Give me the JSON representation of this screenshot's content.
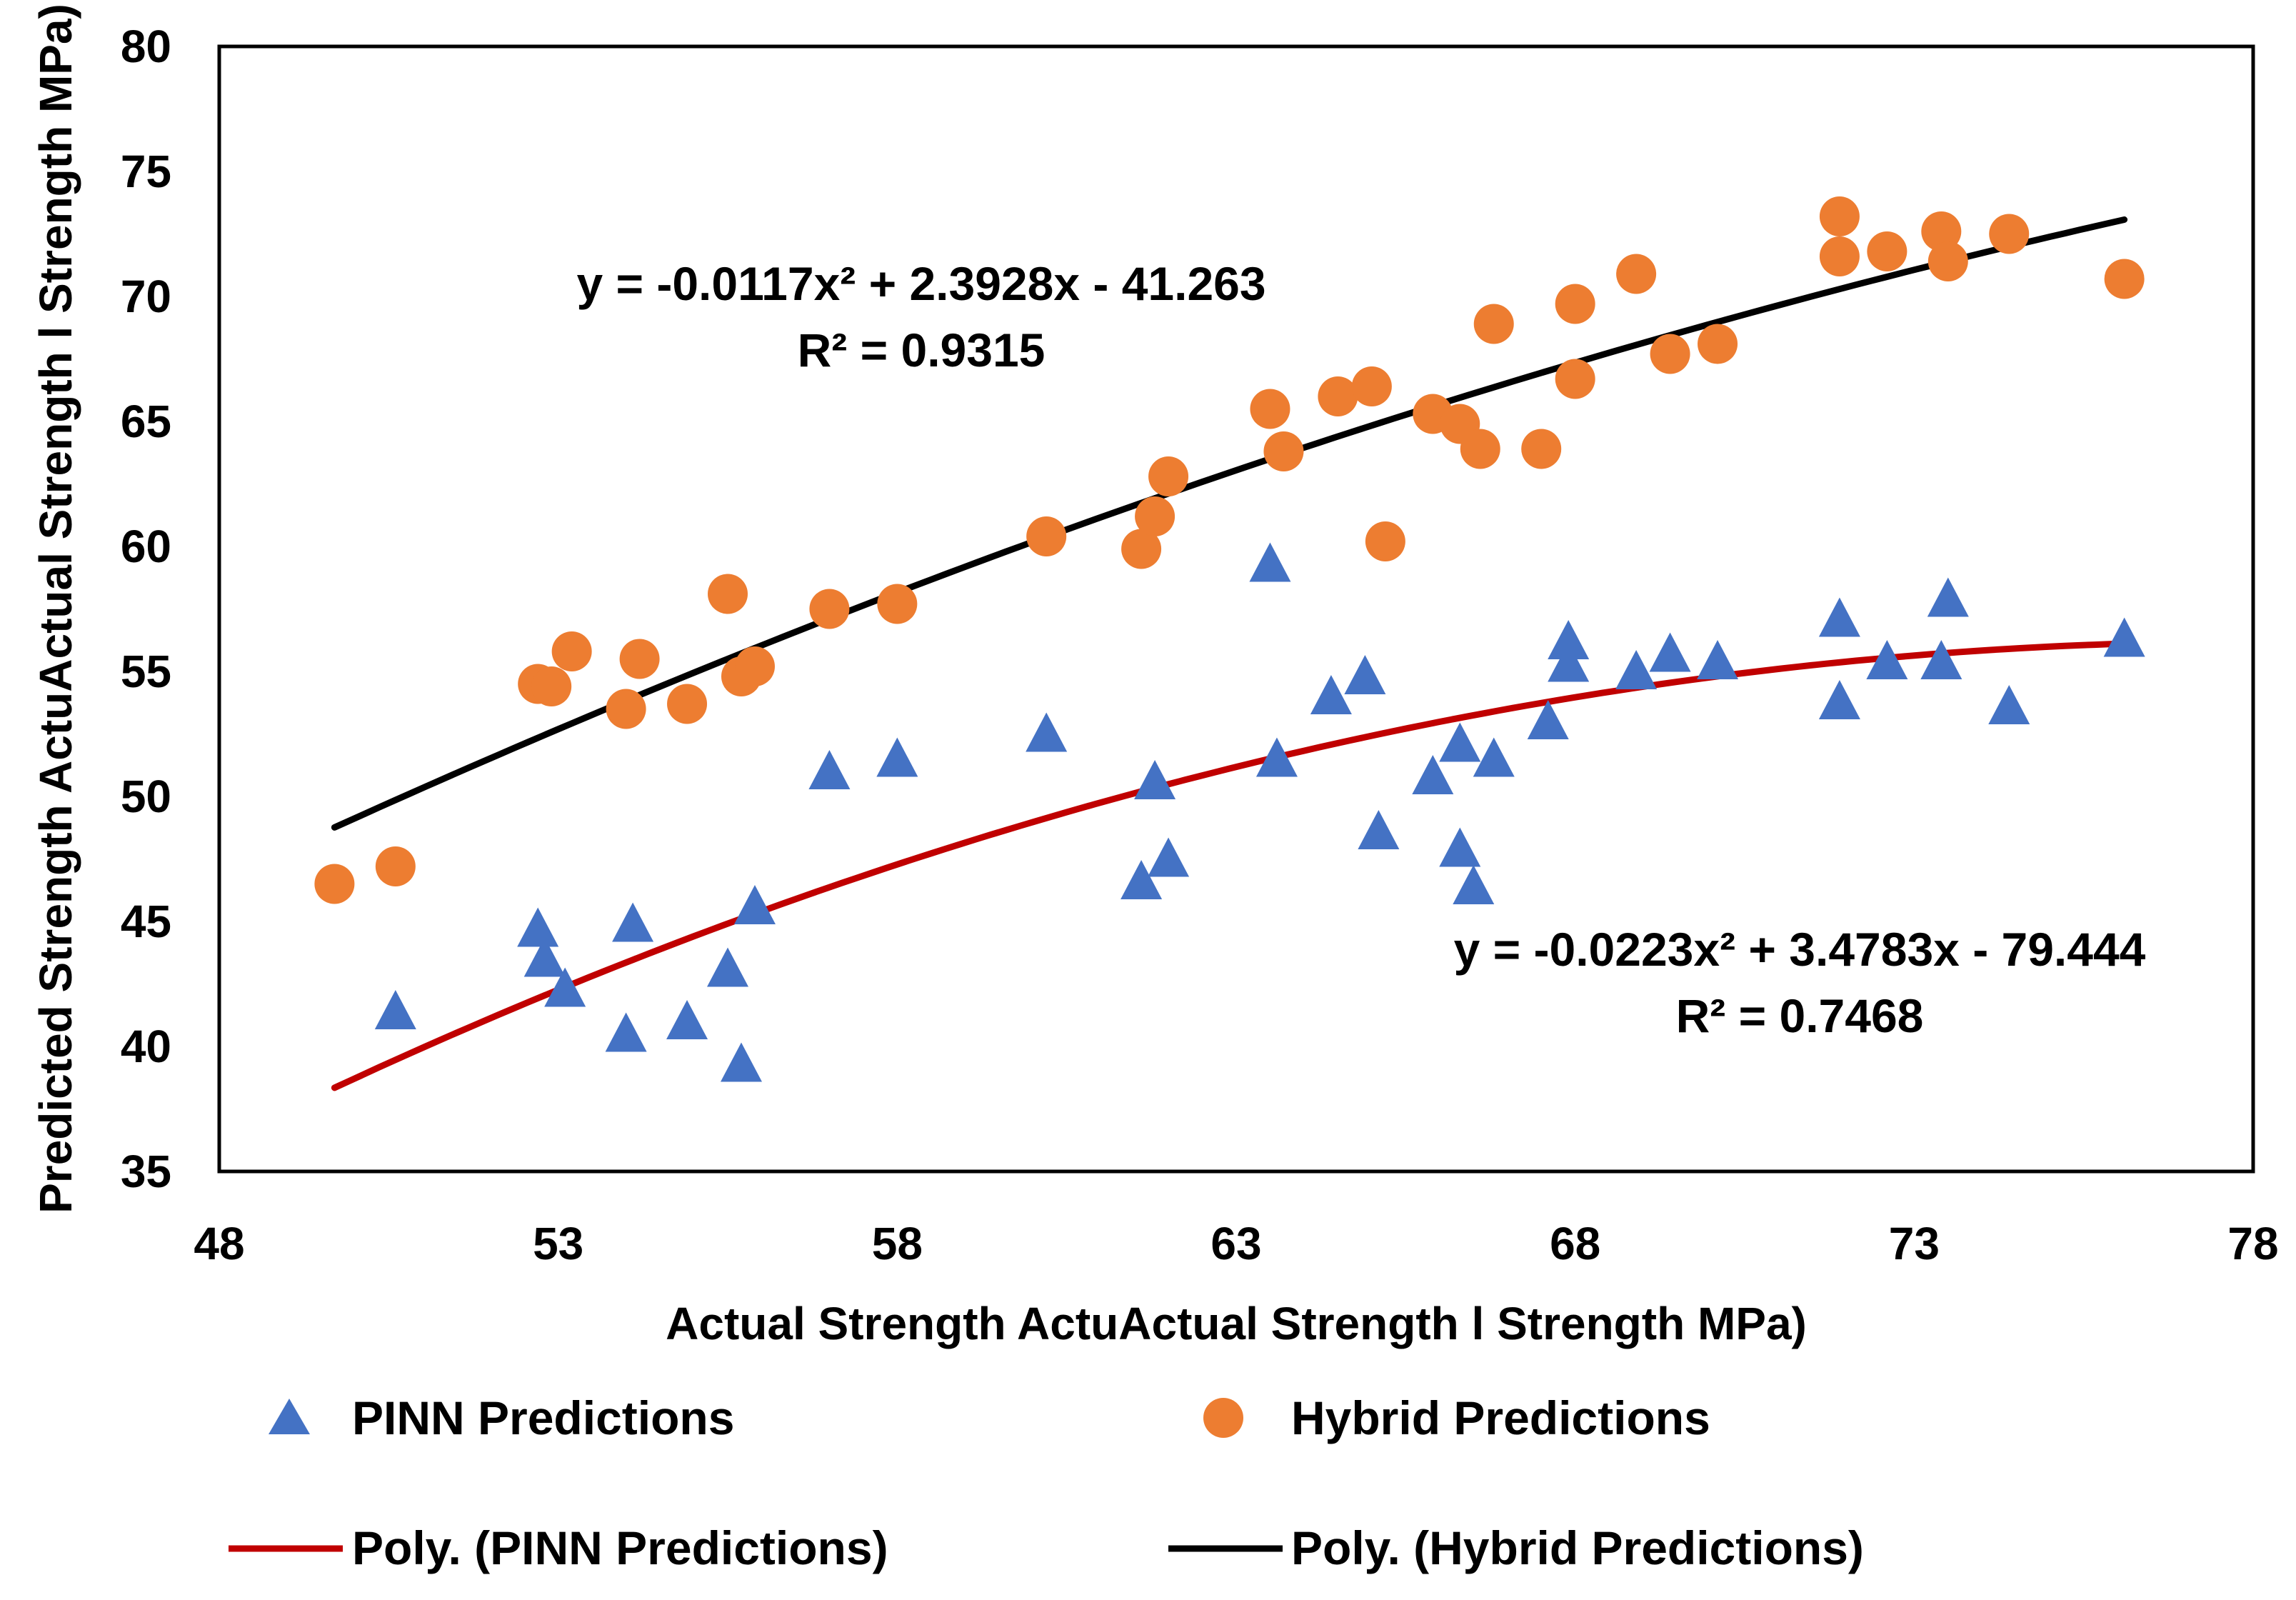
{
  "chart_data": {
    "type": "scatter",
    "title": "",
    "xlabel": "Actual Strength ActuActual Strength l Strength MPa)",
    "ylabel": "Predicted Strength ActuActual Strength l Strength MPa)",
    "xlim": [
      48,
      78
    ],
    "ylim": [
      35,
      80
    ],
    "x_ticks": [
      48,
      53,
      58,
      63,
      68,
      73,
      78
    ],
    "y_ticks": [
      35,
      40,
      45,
      50,
      55,
      60,
      65,
      70,
      75,
      80
    ],
    "grid": false,
    "legend_position": "bottom",
    "series": [
      {
        "name": "PINN Predictions",
        "marker": "triangle",
        "color": "#4472C4",
        "points": [
          [
            50.6,
            41.4
          ],
          [
            52.7,
            44.7
          ],
          [
            52.8,
            43.5
          ],
          [
            53.1,
            42.3
          ],
          [
            54.0,
            40.5
          ],
          [
            54.1,
            44.9
          ],
          [
            54.9,
            41.0
          ],
          [
            55.5,
            43.1
          ],
          [
            55.7,
            39.3
          ],
          [
            55.9,
            45.6
          ],
          [
            57.0,
            51.0
          ],
          [
            58.0,
            51.5
          ],
          [
            60.2,
            52.5
          ],
          [
            61.6,
            46.6
          ],
          [
            61.8,
            50.6
          ],
          [
            62.0,
            47.5
          ],
          [
            63.5,
            59.3
          ],
          [
            63.6,
            51.5
          ],
          [
            64.4,
            54.0
          ],
          [
            64.9,
            54.8
          ],
          [
            65.1,
            48.6
          ],
          [
            65.9,
            50.8
          ],
          [
            66.3,
            52.1
          ],
          [
            66.3,
            47.9
          ],
          [
            66.5,
            46.4
          ],
          [
            66.8,
            51.5
          ],
          [
            67.6,
            53.0
          ],
          [
            67.9,
            56.2
          ],
          [
            67.9,
            55.3
          ],
          [
            68.9,
            55.0
          ],
          [
            69.4,
            55.7
          ],
          [
            70.1,
            55.4
          ],
          [
            71.9,
            57.1
          ],
          [
            71.9,
            53.8
          ],
          [
            72.6,
            55.4
          ],
          [
            73.4,
            55.4
          ],
          [
            73.5,
            57.9
          ],
          [
            74.4,
            53.6
          ],
          [
            76.1,
            56.3
          ]
        ]
      },
      {
        "name": "Hybrid Predictions",
        "marker": "circle",
        "color": "#ED7D31",
        "points": [
          [
            49.7,
            46.5
          ],
          [
            50.6,
            47.2
          ],
          [
            52.7,
            54.5
          ],
          [
            52.9,
            54.4
          ],
          [
            53.2,
            55.8
          ],
          [
            54.0,
            53.5
          ],
          [
            54.2,
            55.5
          ],
          [
            54.9,
            53.7
          ],
          [
            55.5,
            58.1
          ],
          [
            55.7,
            54.8
          ],
          [
            55.9,
            55.2
          ],
          [
            57.0,
            57.5
          ],
          [
            58.0,
            57.7
          ],
          [
            60.2,
            60.4
          ],
          [
            61.6,
            59.9
          ],
          [
            61.8,
            61.2
          ],
          [
            62.0,
            62.8
          ],
          [
            63.5,
            65.5
          ],
          [
            63.7,
            63.8
          ],
          [
            64.5,
            66.0
          ],
          [
            65.0,
            66.4
          ],
          [
            65.2,
            60.2
          ],
          [
            65.9,
            65.3
          ],
          [
            66.3,
            64.9
          ],
          [
            66.6,
            63.9
          ],
          [
            66.8,
            68.9
          ],
          [
            67.5,
            63.9
          ],
          [
            68.0,
            66.7
          ],
          [
            68.0,
            69.7
          ],
          [
            68.9,
            70.9
          ],
          [
            69.4,
            67.7
          ],
          [
            70.1,
            68.1
          ],
          [
            71.9,
            73.2
          ],
          [
            71.9,
            71.6
          ],
          [
            72.6,
            71.8
          ],
          [
            73.4,
            72.6
          ],
          [
            73.5,
            71.4
          ],
          [
            74.4,
            72.5
          ],
          [
            76.1,
            70.7
          ]
        ]
      }
    ],
    "trendlines": [
      {
        "name": "Poly. (PINN Predictions)",
        "color": "#C00000",
        "coefficients": [
          -0.0223,
          3.4783,
          -79.444
        ],
        "x_range": [
          49.7,
          76.1
        ],
        "equation": "y = -0.0223x² + 3.4783x - 79.444",
        "r2": "R² = 0.7468"
      },
      {
        "name": "Poly. (Hybrid Predictions)",
        "color": "#000000",
        "coefficients": [
          -0.0117,
          2.3928,
          -41.263
        ],
        "x_range": [
          49.7,
          76.1
        ],
        "equation": "y = -0.0117x² + 2.3928x - 41.263",
        "r2": "R² = 0.9315"
      }
    ]
  },
  "legend": {
    "pinn_label": "PINN Predictions",
    "hybrid_label": "Hybrid Predictions",
    "pinn_poly_label": "Poly. (PINN Predictions)",
    "hybrid_poly_label": "Poly. (Hybrid Predictions)"
  }
}
